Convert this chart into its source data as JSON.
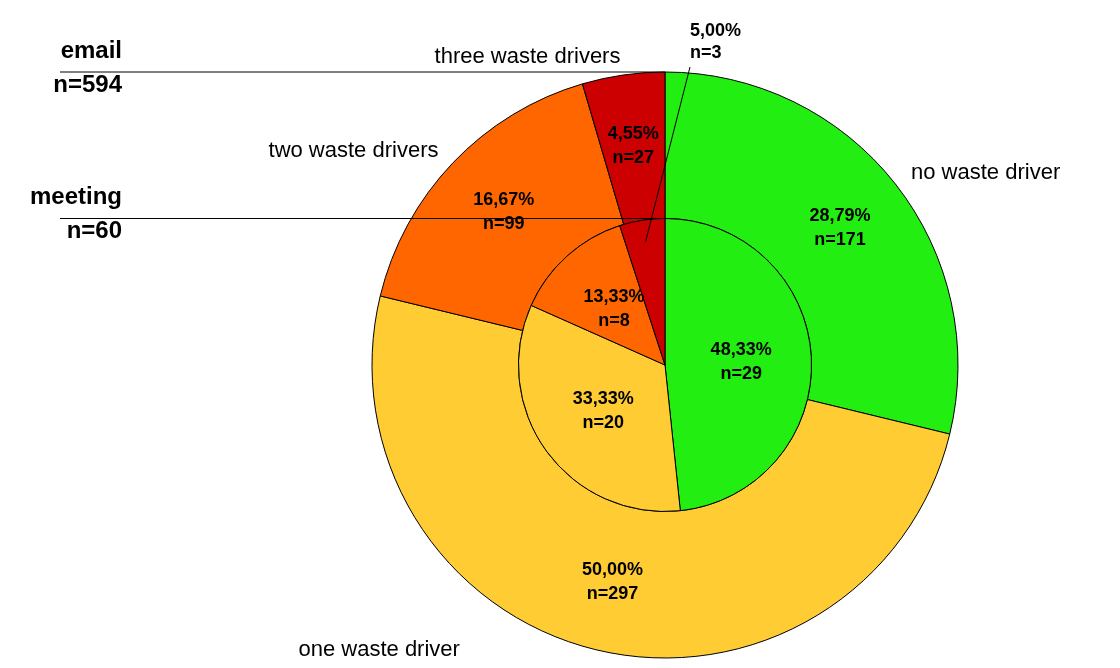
{
  "chart_data": {
    "type": "pie",
    "categories": [
      "no waste driver",
      "one waste driver",
      "two waste drivers",
      "three waste drivers"
    ],
    "colors": [
      "#22ee11",
      "#ffcc33",
      "#ff6600",
      "#cc0000"
    ],
    "series": [
      {
        "name": "email\nn=594",
        "values": [
          171,
          297,
          99,
          27
        ],
        "value_labels": [
          "28,79%\nn=171",
          "50,00%\nn=297",
          "16,67%\nn=99",
          "4,55%\nn=27"
        ]
      },
      {
        "name": "meeting\nn=60",
        "values": [
          29,
          20,
          8,
          3
        ],
        "value_labels": [
          "48,33%\nn=29",
          "33,33%\nn=20",
          "13,33%\nn=8",
          "5,00%\nn=3"
        ]
      }
    ],
    "legend": false
  }
}
